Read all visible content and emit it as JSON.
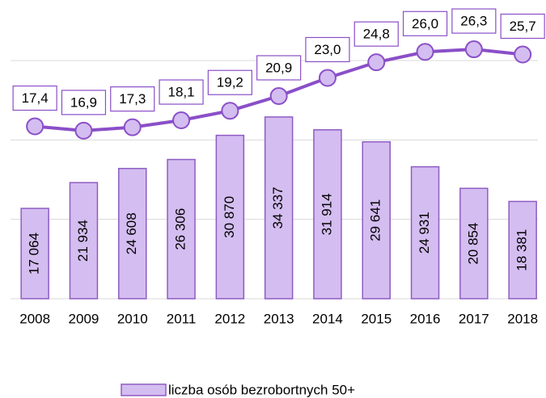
{
  "chart_data": {
    "type": "bar-line",
    "categories": [
      "2008",
      "2009",
      "2010",
      "2011",
      "2012",
      "2013",
      "2014",
      "2015",
      "2016",
      "2017",
      "2018"
    ],
    "series": [
      {
        "name": "liczba osób bezrobortnych 50+",
        "type": "bar",
        "color": "#d4bdf0",
        "edge_color": "#8e5cc4",
        "values": [
          17064,
          21934,
          24608,
          26306,
          30870,
          34337,
          31914,
          29641,
          24931,
          20854,
          18381
        ],
        "value_labels": [
          "17 064",
          "21 934",
          "24 608",
          "26 306",
          "30 870",
          "34 337",
          "31 914",
          "29 641",
          "24 931",
          "20 854",
          "18 381"
        ]
      },
      {
        "type": "line",
        "axis": "y2",
        "color": "#8a4fc8",
        "marker_color": "#d4bdf0",
        "values": [
          17.4,
          16.9,
          17.3,
          18.1,
          19.2,
          20.9,
          23.0,
          24.8,
          26.0,
          26.3,
          25.7
        ],
        "value_labels": [
          "17,4",
          "16,9",
          "17,3",
          "18,1",
          "19,2",
          "20,9",
          "23,0",
          "24,8",
          "26,0",
          "26,3",
          "25,7"
        ]
      }
    ],
    "ylim": [
      0,
      45000
    ],
    "yticks": [
      0,
      15000,
      30000,
      45000
    ],
    "y2lim": [
      -2.5,
      25
    ],
    "grid": true,
    "legend": "bottom"
  }
}
